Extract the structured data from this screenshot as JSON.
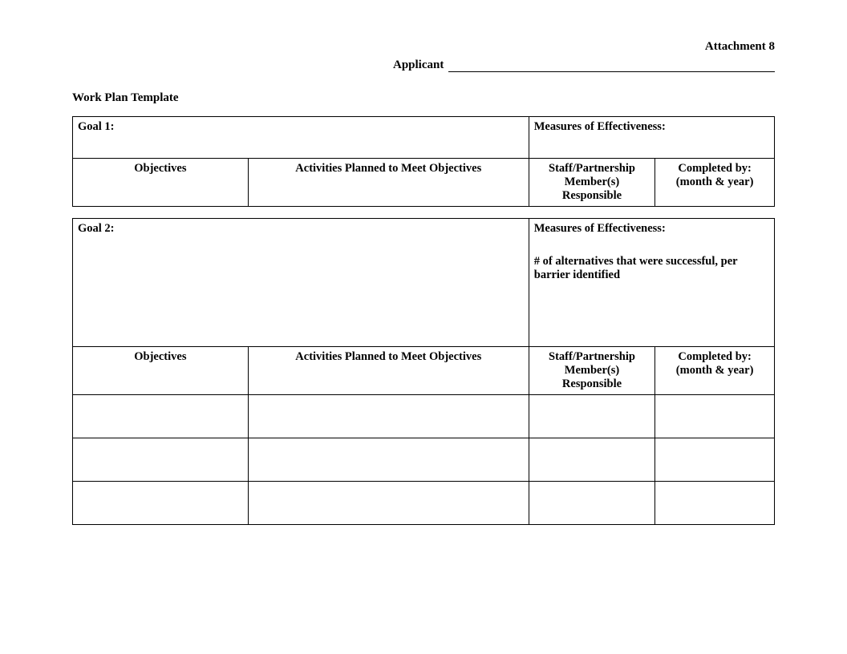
{
  "header": {
    "attachment": "Attachment 8",
    "applicant_label": "Applicant",
    "title": "Work Plan Template"
  },
  "columns": {
    "objectives": "Objectives",
    "activities": "Activities Planned to Meet Objectives",
    "staff": "Staff/Partnership Member(s) Responsible",
    "completed": "Completed by: (month & year)"
  },
  "goals": [
    {
      "goal_label": "Goal 1:",
      "measures_label": "Measures of Effectiveness:",
      "measures_body": "",
      "rows": 0
    },
    {
      "goal_label": "Goal 2:",
      "measures_label": "Measures of Effectiveness:",
      "measures_body": "# of alternatives that were successful, per barrier identified",
      "rows": 3
    }
  ]
}
